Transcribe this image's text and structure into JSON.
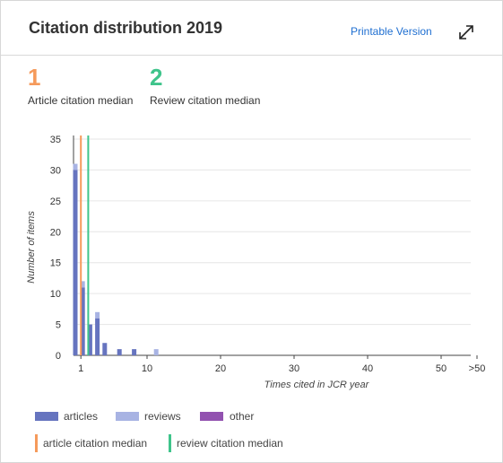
{
  "header": {
    "title": "Citation distribution 2019",
    "printable_label": "Printable Version",
    "expand_icon": "expand-arrows-icon"
  },
  "medians": [
    {
      "value": "1",
      "label": "Article citation median",
      "color": "#f59a5b"
    },
    {
      "value": "2",
      "label": "Review citation median",
      "color": "#3fc48b"
    }
  ],
  "chart_data": {
    "type": "bar",
    "ylabel": "Number of items",
    "xlabel": "Times cited in JCR year",
    "ylim": [
      0,
      35
    ],
    "yticks": [
      0,
      5,
      10,
      15,
      20,
      25,
      30,
      35
    ],
    "xticks": [
      "1",
      "10",
      "20",
      "30",
      "40",
      "50",
      ">50"
    ],
    "x": [
      0,
      1,
      2,
      3,
      4,
      6,
      8,
      11
    ],
    "series": [
      {
        "name": "articles",
        "color": "#6674bf",
        "values": [
          30,
          11,
          5,
          6,
          2,
          1,
          1,
          0
        ]
      },
      {
        "name": "reviews",
        "color": "#a8b3e3",
        "values": [
          1,
          1,
          0,
          1,
          0,
          0,
          0,
          1
        ]
      },
      {
        "name": "other",
        "color": "#9252b0",
        "values": [
          0,
          0,
          0,
          0,
          0,
          0,
          0,
          0
        ]
      }
    ],
    "medians": [
      {
        "name": "article citation median",
        "x": 1,
        "color": "#f59a5b"
      },
      {
        "name": "review citation median",
        "x": 2,
        "color": "#3fc48b"
      }
    ],
    "grid": true,
    "legend": "bottom"
  }
}
